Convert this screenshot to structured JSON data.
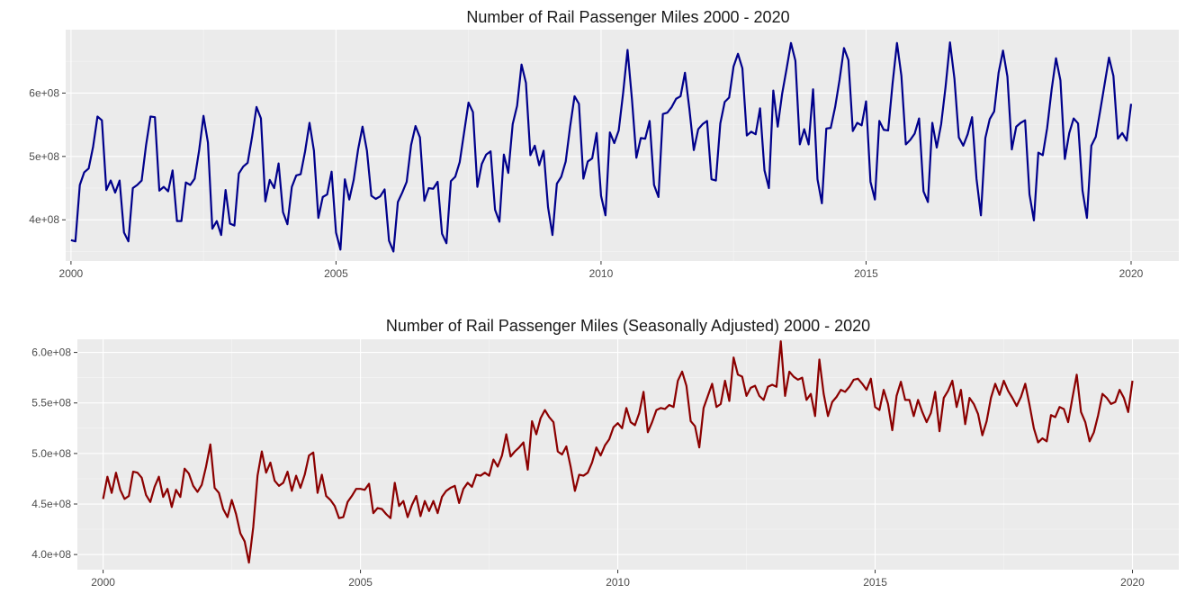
{
  "colors": {
    "panel_background": "#ebebeb",
    "grid_major": "#ffffff",
    "grid_minor": "#f5f5f5",
    "tick_text": "#4d4d4d",
    "title_text": "#1a1a1a"
  },
  "chart_data": [
    {
      "type": "line",
      "title": "Number of Rail Passenger Miles 2000 - 2020",
      "xlabel": "",
      "ylabel": "",
      "x_unit": "year (monthly observations, Jan 2000 - Dec 2019)",
      "xlim": [
        1999.9,
        2020.9
      ],
      "ylim": [
        335000000,
        700000000
      ],
      "x_ticks": [
        2000,
        2005,
        2010,
        2015,
        2020
      ],
      "x_tick_labels": [
        "2000",
        "2005",
        "2010",
        "2015",
        "2020"
      ],
      "y_ticks": [
        400000000,
        500000000,
        600000000
      ],
      "y_tick_labels": [
        "4e+08",
        "5e+08",
        "6e+08"
      ],
      "grid": true,
      "legend": "none",
      "series": [
        {
          "color": "#00008b",
          "x_start": 2000,
          "x_step_months": 1,
          "values": [
            368000000,
            366000000,
            455000000,
            475000000,
            481000000,
            515000000,
            563000000,
            557000000,
            447000000,
            462000000,
            443000000,
            462000000,
            380000000,
            366000000,
            450000000,
            455000000,
            462000000,
            518000000,
            563000000,
            562000000,
            446000000,
            452000000,
            445000000,
            478000000,
            398000000,
            398000000,
            459000000,
            455000000,
            465000000,
            509000000,
            564000000,
            522000000,
            386000000,
            398000000,
            376000000,
            447000000,
            394000000,
            391000000,
            473000000,
            484000000,
            490000000,
            531000000,
            578000000,
            560000000,
            429000000,
            463000000,
            450000000,
            489000000,
            412000000,
            393000000,
            452000000,
            470000000,
            472000000,
            508000000,
            553000000,
            509000000,
            403000000,
            436000000,
            440000000,
            476000000,
            380000000,
            353000000,
            464000000,
            432000000,
            463000000,
            511000000,
            547000000,
            509000000,
            438000000,
            433000000,
            437000000,
            448000000,
            367000000,
            350000000,
            428000000,
            443000000,
            460000000,
            518000000,
            548000000,
            530000000,
            430000000,
            450000000,
            449000000,
            460000000,
            378000000,
            363000000,
            461000000,
            468000000,
            491000000,
            538000000,
            585000000,
            570000000,
            452000000,
            488000000,
            503000000,
            508000000,
            416000000,
            397000000,
            503000000,
            474000000,
            551000000,
            580000000,
            645000000,
            616000000,
            502000000,
            517000000,
            486000000,
            509000000,
            420000000,
            376000000,
            457000000,
            468000000,
            492000000,
            547000000,
            595000000,
            583000000,
            465000000,
            492000000,
            497000000,
            537000000,
            438000000,
            407000000,
            538000000,
            521000000,
            541000000,
            600000000,
            668000000,
            590000000,
            498000000,
            529000000,
            528000000,
            556000000,
            455000000,
            436000000,
            567000000,
            569000000,
            578000000,
            591000000,
            595000000,
            632000000,
            575000000,
            510000000,
            543000000,
            551000000,
            556000000,
            464000000,
            462000000,
            552000000,
            586000000,
            593000000,
            642000000,
            662000000,
            639000000,
            533000000,
            539000000,
            535000000,
            576000000,
            478000000,
            450000000,
            604000000,
            547000000,
            599000000,
            638000000,
            679000000,
            651000000,
            519000000,
            543000000,
            519000000,
            606000000,
            464000000,
            426000000,
            544000000,
            545000000,
            578000000,
            621000000,
            671000000,
            652000000,
            540000000,
            553000000,
            549000000,
            587000000,
            460000000,
            432000000,
            556000000,
            542000000,
            541000000,
            615000000,
            679000000,
            627000000,
            519000000,
            526000000,
            536000000,
            560000000,
            445000000,
            428000000,
            553000000,
            514000000,
            551000000,
            610000000,
            680000000,
            623000000,
            530000000,
            517000000,
            535000000,
            562000000,
            465000000,
            407000000,
            529000000,
            559000000,
            571000000,
            632000000,
            667000000,
            626000000,
            511000000,
            547000000,
            553000000,
            557000000,
            440000000,
            399000000,
            506000000,
            502000000,
            545000000,
            605000000,
            655000000,
            620000000,
            496000000,
            537000000,
            560000000,
            552000000,
            446000000,
            403000000,
            517000000,
            531000000,
            572000000,
            614000000,
            656000000,
            627000000,
            528000000,
            537000000,
            525000000,
            583000000
          ]
        }
      ]
    },
    {
      "type": "line",
      "title": "Number of Rail Passenger Miles (Seasonally Adjusted) 2000 - 2020",
      "xlabel": "",
      "ylabel": "",
      "x_unit": "year (monthly observations, Jan 2000 - Dec 2019)",
      "xlim": [
        1999.5,
        2020.9
      ],
      "ylim": [
        385000000,
        613000000
      ],
      "x_ticks": [
        2000,
        2005,
        2010,
        2015,
        2020
      ],
      "x_tick_labels": [
        "2000",
        "2005",
        "2010",
        "2015",
        "2020"
      ],
      "y_ticks": [
        400000000,
        450000000,
        500000000,
        550000000,
        600000000
      ],
      "y_tick_labels": [
        "4.0e+08",
        "4.5e+08",
        "5.0e+08",
        "5.5e+08",
        "6.0e+08"
      ],
      "grid": true,
      "legend": "none",
      "series": [
        {
          "color": "#8b0000",
          "x_start": 2000,
          "x_step_months": 1,
          "values": [
            455000000,
            477000000,
            461000000,
            481000000,
            464000000,
            455000000,
            458000000,
            482000000,
            481000000,
            476000000,
            459000000,
            452000000,
            467000000,
            477000000,
            457000000,
            465000000,
            447000000,
            464000000,
            457000000,
            485000000,
            480000000,
            468000000,
            462000000,
            469000000,
            487000000,
            509000000,
            466000000,
            461000000,
            445000000,
            437000000,
            454000000,
            440000000,
            421000000,
            413000000,
            392000000,
            427000000,
            478000000,
            502000000,
            481000000,
            491000000,
            473000000,
            468000000,
            471000000,
            482000000,
            463000000,
            478000000,
            466000000,
            479000000,
            498000000,
            501000000,
            461000000,
            479000000,
            458000000,
            454000000,
            448000000,
            436000000,
            437000000,
            452000000,
            458000000,
            465000000,
            465000000,
            464000000,
            470000000,
            441000000,
            446000000,
            445000000,
            440000000,
            436000000,
            471000000,
            448000000,
            453000000,
            437000000,
            449000000,
            458000000,
            438000000,
            453000000,
            443000000,
            453000000,
            441000000,
            457000000,
            463000000,
            466000000,
            468000000,
            451000000,
            465000000,
            471000000,
            467000000,
            479000000,
            478000000,
            481000000,
            478000000,
            494000000,
            487000000,
            498000000,
            519000000,
            497000000,
            502000000,
            506000000,
            511000000,
            484000000,
            532000000,
            519000000,
            535000000,
            543000000,
            536000000,
            531000000,
            502000000,
            499000000,
            507000000,
            487000000,
            463000000,
            479000000,
            478000000,
            481000000,
            491000000,
            506000000,
            498000000,
            508000000,
            514000000,
            526000000,
            530000000,
            525000000,
            545000000,
            531000000,
            528000000,
            540000000,
            561000000,
            521000000,
            531000000,
            543000000,
            545000000,
            544000000,
            548000000,
            546000000,
            572000000,
            581000000,
            567000000,
            532000000,
            527000000,
            506000000,
            545000000,
            557000000,
            569000000,
            546000000,
            549000000,
            572000000,
            552000000,
            595000000,
            578000000,
            576000000,
            557000000,
            565000000,
            567000000,
            557000000,
            553000000,
            566000000,
            568000000,
            566000000,
            611000000,
            557000000,
            581000000,
            576000000,
            573000000,
            575000000,
            553000000,
            559000000,
            537000000,
            593000000,
            559000000,
            537000000,
            551000000,
            556000000,
            563000000,
            561000000,
            566000000,
            573000000,
            574000000,
            569000000,
            563000000,
            574000000,
            546000000,
            543000000,
            563000000,
            549000000,
            523000000,
            557000000,
            571000000,
            553000000,
            553000000,
            537000000,
            553000000,
            541000000,
            531000000,
            540000000,
            561000000,
            522000000,
            555000000,
            562000000,
            572000000,
            546000000,
            563000000,
            529000000,
            555000000,
            549000000,
            539000000,
            518000000,
            532000000,
            555000000,
            569000000,
            558000000,
            572000000,
            562000000,
            555000000,
            547000000,
            556000000,
            569000000,
            548000000,
            525000000,
            511000000,
            515000000,
            512000000,
            538000000,
            536000000,
            546000000,
            544000000,
            531000000,
            555000000,
            578000000,
            541000000,
            531000000,
            512000000,
            521000000,
            538000000,
            559000000,
            555000000,
            549000000,
            551000000,
            563000000,
            555000000,
            541000000,
            572000000
          ]
        }
      ]
    }
  ]
}
